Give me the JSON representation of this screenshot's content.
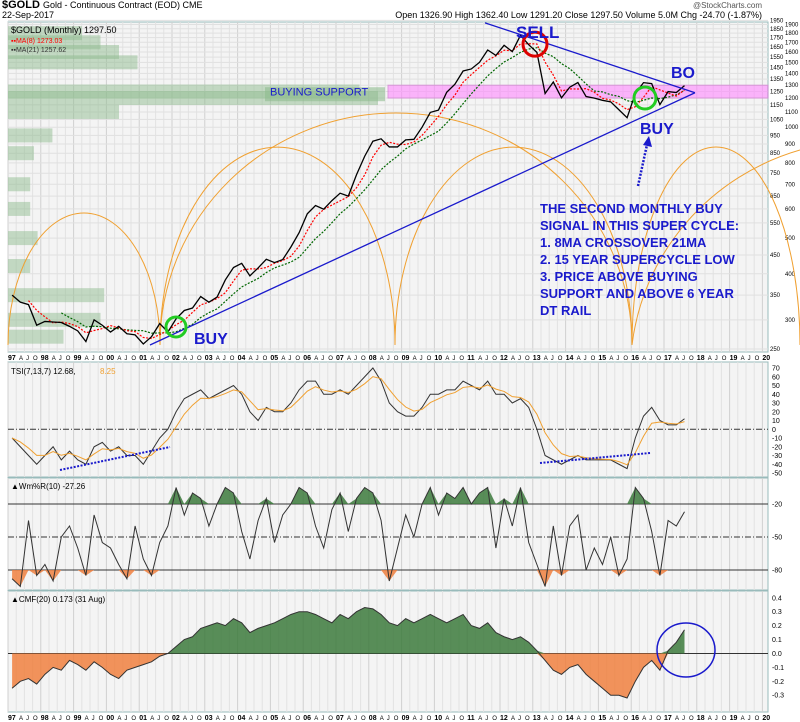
{
  "header": {
    "symbol": "$GOLD",
    "description": "Gold - Continuous Contract (EOD) CME",
    "date": "22-Sep-2017",
    "watermark": "@StockCharts.com",
    "quote": "Open 1326.90  High 1362.40  Low 1291.20  Close 1297.50  Volume 5.0M  Chg -24.70 (-1.87%)"
  },
  "legend": {
    "price": "$GOLD (Monthly) 1297.50",
    "ma8": "MA(8) 1273.03",
    "ma21": "MA(21) 1257.62",
    "tsi_main": "TSI(7,13,7) 12.68,",
    "tsi_signal": "8.25",
    "wr": "Wm%R(10) -27.26",
    "cmf": "CMF(20) 0.173 (31 Aug)"
  },
  "colors": {
    "price": "#000000",
    "ma8": "#ff0000",
    "ma21": "#006600",
    "trend": "#1a1acc",
    "cycle": "#f0a030",
    "support": "#ff88ff",
    "vbp": "#8fbc8f",
    "pos": "#3c7a3c",
    "neg": "#f08040",
    "tsi_signal": "#f0a030",
    "buy": "#22cc22",
    "sell": "#dd0000"
  },
  "annotations": {
    "sell": "SELL",
    "buy_1": "BUY",
    "buy_2": "BUY",
    "bo": "BO",
    "buying_support": "BUYING SUPPORT",
    "note": [
      "THE SECOND MONTHLY BUY",
      "SIGNAL IN THIS SUPER CYCLE:",
      "1. 8MA CROSSOVER 21MA",
      "2. 15 YEAR SUPERCYCLE LOW",
      "3. PRICE ABOVE BUYING",
      "SUPPORT AND ABOVE 6 YEAR",
      "DT RAIL"
    ]
  },
  "chart_data": [
    {
      "type": "line",
      "title": "$GOLD (Monthly)",
      "scale": "log",
      "x_start": "1997",
      "x_step": "quarter",
      "x_tick_labels": [
        "97",
        "98",
        "99",
        "00",
        "01",
        "02",
        "03",
        "04",
        "05",
        "06",
        "07",
        "08",
        "09",
        "10",
        "11",
        "12",
        "13",
        "14",
        "15",
        "16",
        "17",
        "18",
        "19",
        "20"
      ],
      "x_minor_labels": [
        "A",
        "J",
        "O"
      ],
      "y_ticks": [
        250,
        300,
        350,
        400,
        450,
        500,
        550,
        600,
        650,
        700,
        750,
        800,
        850,
        900,
        950,
        1000,
        1050,
        1100,
        1150,
        1200,
        1250,
        1300,
        1350,
        1400,
        1450,
        1500,
        1550,
        1600,
        1650,
        1700,
        1750,
        1800,
        1850,
        1900,
        1950
      ],
      "ylim": [
        250,
        1950
      ],
      "values": [
        350,
        335,
        330,
        290,
        297,
        296,
        295,
        288,
        280,
        262,
        300,
        290,
        278,
        288,
        275,
        273,
        258,
        270,
        293,
        278,
        302,
        318,
        323,
        347,
        335,
        346,
        385,
        416,
        427,
        395,
        415,
        438,
        429,
        437,
        473,
        517,
        582,
        613,
        599,
        632,
        662,
        650,
        743,
        834,
        916,
        930,
        884,
        884,
        924,
        927,
        1000,
        1097,
        1113,
        1244,
        1308,
        1421,
        1439,
        1500,
        1620,
        1566,
        1668,
        1604,
        1776,
        1675,
        1596,
        1234,
        1326,
        1202,
        1284,
        1322,
        1211,
        1199,
        1183,
        1172,
        1115,
        1061,
        1234,
        1321,
        1313,
        1152,
        1249,
        1242,
        1297
      ],
      "support_zone": [
        1200,
        1300
      ],
      "volume_by_price": [
        {
          "price": 1200,
          "volume": 1.0
        },
        {
          "price": 1250,
          "volume": 0.95
        },
        {
          "price": 1100,
          "volume": 0.3
        },
        {
          "price": 1500,
          "volume": 0.35
        },
        {
          "price": 1600,
          "volume": 0.3
        },
        {
          "price": 1700,
          "volume": 0.25
        },
        {
          "price": 1800,
          "volume": 0.2
        },
        {
          "price": 950,
          "volume": 0.12
        },
        {
          "price": 850,
          "volume": 0.07
        },
        {
          "price": 700,
          "volume": 0.06
        },
        {
          "price": 600,
          "volume": 0.06
        },
        {
          "price": 500,
          "volume": 0.08
        },
        {
          "price": 420,
          "volume": 0.06
        },
        {
          "price": 350,
          "volume": 0.26
        },
        {
          "price": 300,
          "volume": 0.25
        },
        {
          "price": 270,
          "volume": 0.15
        }
      ]
    },
    {
      "type": "line",
      "title": "TSI(7,13,7)",
      "ylim": [
        -50,
        70
      ],
      "y_ticks": [
        70,
        60,
        50,
        40,
        30,
        20,
        10,
        0,
        -10,
        -20,
        -30,
        -40,
        -50
      ],
      "values": [
        -10,
        -20,
        -30,
        -40,
        -30,
        -20,
        -35,
        -25,
        -35,
        -40,
        -20,
        -15,
        -25,
        -20,
        -30,
        -30,
        -40,
        -25,
        -10,
        0,
        20,
        35,
        40,
        45,
        35,
        40,
        45,
        50,
        40,
        20,
        10,
        25,
        20,
        20,
        30,
        45,
        55,
        55,
        40,
        40,
        45,
        40,
        50,
        60,
        70,
        55,
        30,
        20,
        15,
        15,
        25,
        40,
        40,
        45,
        45,
        55,
        50,
        45,
        55,
        40,
        40,
        30,
        35,
        25,
        0,
        -30,
        -35,
        -40,
        -35,
        -30,
        -35,
        -35,
        -35,
        -35,
        -40,
        -45,
        -10,
        15,
        25,
        10,
        5,
        5,
        12
      ]
    },
    {
      "type": "area",
      "title": "Wm%R(10)",
      "ylim": [
        -100,
        0
      ],
      "y_ticks": [
        -20,
        -50,
        -80
      ],
      "values": [
        -88,
        -95,
        -35,
        -85,
        -75,
        -90,
        -50,
        -40,
        -60,
        -85,
        -30,
        -55,
        -60,
        -75,
        -88,
        -40,
        -70,
        -85,
        -55,
        -40,
        -5,
        -30,
        -10,
        -15,
        -40,
        -20,
        -5,
        -10,
        -45,
        -70,
        -35,
        -15,
        -55,
        -30,
        -20,
        -5,
        -10,
        -40,
        -60,
        -25,
        -10,
        -45,
        -15,
        -5,
        -10,
        -35,
        -90,
        -60,
        -30,
        -50,
        -20,
        -5,
        -30,
        -10,
        -15,
        -5,
        -20,
        -10,
        -5,
        -60,
        -15,
        -40,
        -5,
        -55,
        -75,
        -95,
        -40,
        -85,
        -40,
        -30,
        -80,
        -60,
        -75,
        -50,
        -85,
        -70,
        -5,
        -15,
        -45,
        -85,
        -35,
        -40,
        -27
      ]
    },
    {
      "type": "area",
      "title": "CMF(20)",
      "ylim": [
        -0.35,
        0.45
      ],
      "y_ticks": [
        0.4,
        0.3,
        0.2,
        0.1,
        0.0,
        -0.1,
        -0.2,
        -0.3
      ],
      "values": [
        -0.25,
        -0.2,
        -0.18,
        -0.22,
        -0.15,
        -0.1,
        -0.12,
        -0.05,
        -0.08,
        -0.12,
        -0.06,
        -0.1,
        -0.15,
        -0.18,
        -0.12,
        -0.1,
        -0.08,
        -0.06,
        -0.02,
        0.0,
        0.05,
        0.1,
        0.12,
        0.18,
        0.2,
        0.22,
        0.2,
        0.25,
        0.22,
        0.15,
        0.18,
        0.2,
        0.22,
        0.25,
        0.28,
        0.3,
        0.3,
        0.28,
        0.25,
        0.22,
        0.28,
        0.25,
        0.3,
        0.33,
        0.32,
        0.28,
        0.22,
        0.2,
        0.25,
        0.22,
        0.25,
        0.28,
        0.25,
        0.22,
        0.25,
        0.28,
        0.2,
        0.18,
        0.22,
        0.15,
        0.12,
        0.1,
        0.12,
        0.08,
        0.02,
        -0.05,
        -0.12,
        -0.15,
        -0.1,
        -0.08,
        -0.15,
        -0.2,
        -0.25,
        -0.3,
        -0.3,
        -0.32,
        -0.2,
        -0.1,
        -0.05,
        -0.12,
        0.02,
        0.08,
        0.17
      ]
    }
  ]
}
